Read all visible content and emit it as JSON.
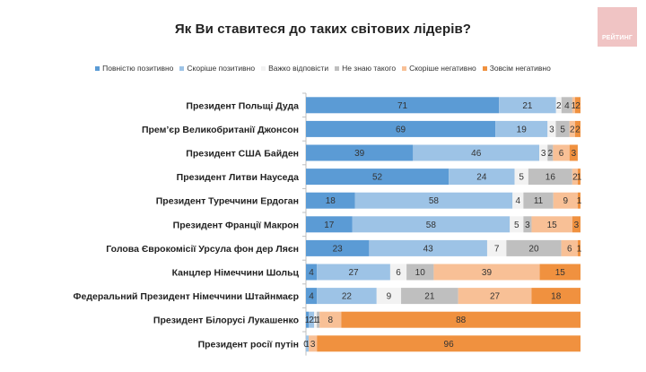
{
  "logo": {
    "text": "РЕЙТИНГ",
    "color": "#f0c4c4"
  },
  "chart_data": {
    "type": "bar",
    "orientation": "horizontal",
    "stacked": true,
    "title": "Як Ви ставитеся до таких світових лідерів?",
    "xlabel": "",
    "ylabel": "",
    "xlim": [
      0,
      100
    ],
    "grid": false,
    "legend_position": "top",
    "categories": [
      "Президент Польщі Дуда",
      "Прем’єр Великобританії Джонсон",
      "Президент США Байден",
      "Президент Литви Науседа",
      "Президент Туреччини Ердоган",
      "Президент Франції Макрон",
      "Голова Єврокомісії Урсула фон дер Ляєн",
      "Канцлер Німеччини Шольц",
      "Федеральний Президент Німеччини Штайнмаєр",
      "Президент Білорусі Лукашенко",
      "Президент росії путін"
    ],
    "series": [
      {
        "name": "Повністю позитивно",
        "color": "#5b9bd5",
        "values": [
          71,
          69,
          39,
          52,
          18,
          17,
          23,
          4,
          4,
          1,
          0
        ]
      },
      {
        "name": "Скоріше позитивно",
        "color": "#9dc3e6",
        "values": [
          21,
          19,
          46,
          24,
          58,
          58,
          43,
          27,
          22,
          2,
          1
        ]
      },
      {
        "name": "Важко відповісти",
        "color": "#f2f2f2",
        "values": [
          2,
          3,
          3,
          5,
          4,
          5,
          7,
          6,
          9,
          1,
          0
        ]
      },
      {
        "name": "Не знаю такого",
        "color": "#bfbfbf",
        "values": [
          4,
          5,
          2,
          16,
          11,
          3,
          20,
          10,
          21,
          1,
          0
        ]
      },
      {
        "name": "Скоріше негативно",
        "color": "#f8c096",
        "values": [
          1,
          2,
          6,
          2,
          9,
          15,
          6,
          39,
          27,
          8,
          3
        ]
      },
      {
        "name": "Зовсім негативно",
        "color": "#f0913f",
        "values": [
          2,
          2,
          3,
          1,
          1,
          3,
          1,
          15,
          18,
          88,
          96
        ]
      }
    ]
  }
}
